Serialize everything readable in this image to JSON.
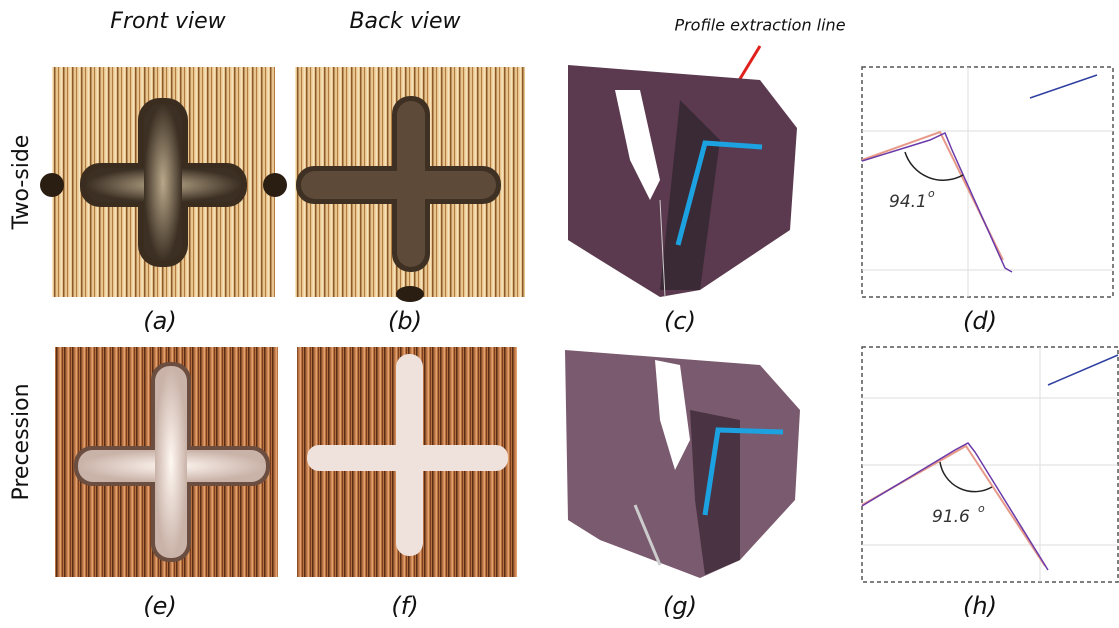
{
  "columns": {
    "front": "Front view",
    "back": "Back view"
  },
  "annotation": "Profile extraction line",
  "rows": [
    {
      "label": "Two-side",
      "panels": [
        "(a)",
        "(b)",
        "(c)",
        "(d)"
      ],
      "angle": "94.1",
      "angle_unit": "o"
    },
    {
      "label": "Precession",
      "panels": [
        "(e)",
        "(f)",
        "(g)",
        "(h)"
      ],
      "angle": "91.6",
      "angle_unit": "o"
    }
  ]
}
